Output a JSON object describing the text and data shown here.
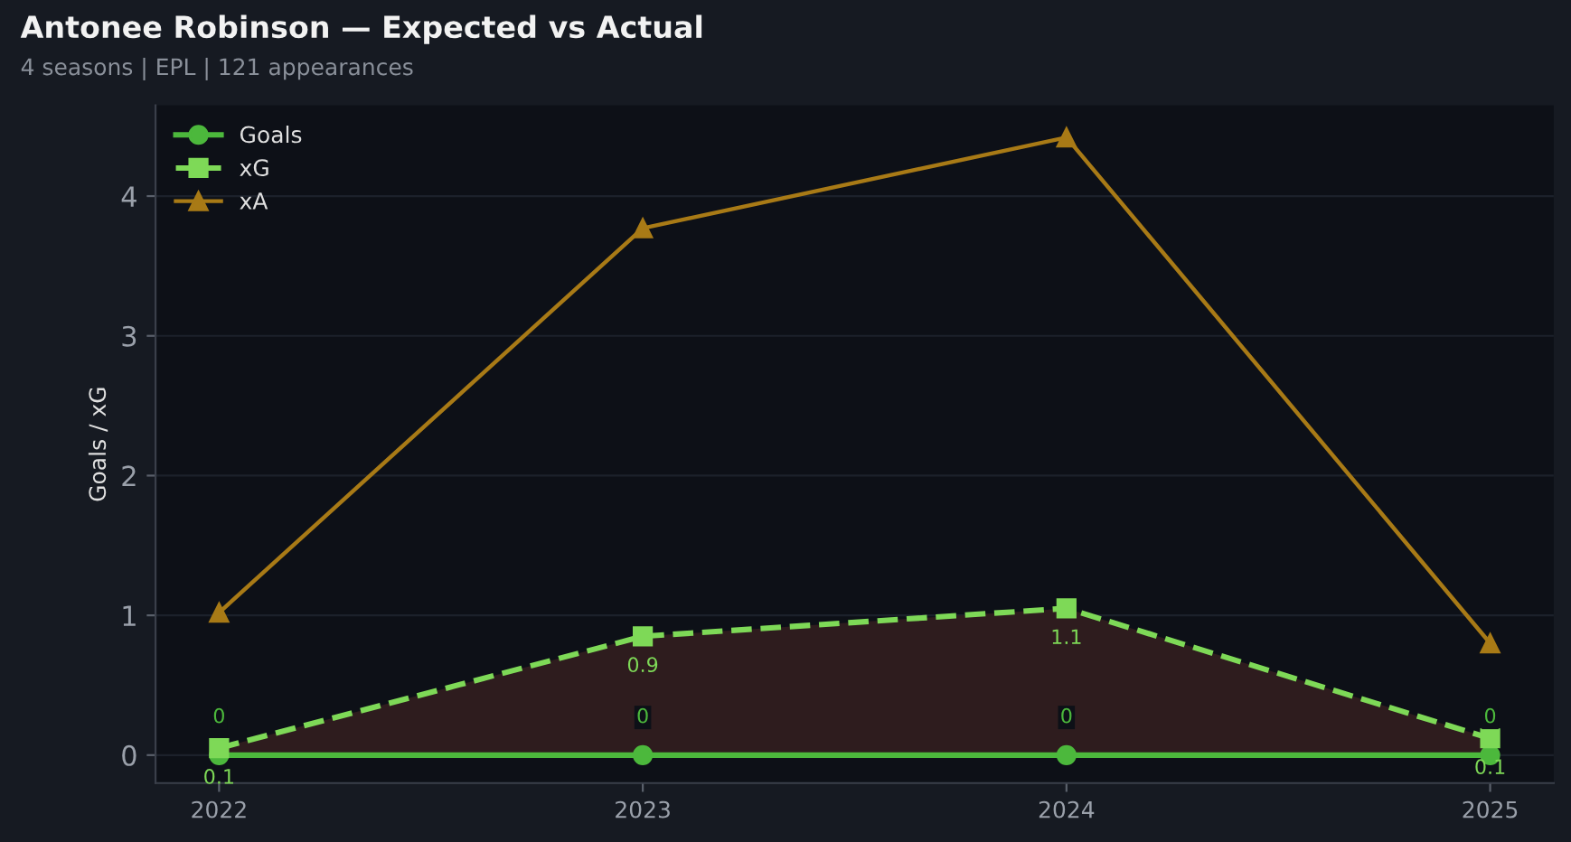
{
  "chart_data": {
    "type": "line",
    "title": "Antonee Robinson — Expected vs Actual",
    "subtitle": "4 seasons | EPL | 121 appearances",
    "ylabel": "Goals / xG",
    "categories": [
      "2022",
      "2023",
      "2024",
      "2025"
    ],
    "series": [
      {
        "name": "Goals",
        "color": "#4cb83c",
        "values": [
          0,
          0,
          0,
          0
        ],
        "marker": "circle",
        "line_style": "solid",
        "value_labels": [
          "0",
          "0",
          "0",
          "0"
        ]
      },
      {
        "name": "xG",
        "color": "#7ed957",
        "values": [
          0.05,
          0.85,
          1.05,
          0.12
        ],
        "marker": "square",
        "line_style": "dashed",
        "lower": [
          0,
          0,
          0,
          0
        ],
        "upper": [
          0.05,
          0.85,
          1.05,
          0.12
        ],
        "value_labels": [
          "0.1",
          "0.9",
          "1.1",
          "0.1"
        ]
      },
      {
        "name": "xA",
        "color": "#a87a16",
        "values": [
          1.02,
          3.77,
          4.42,
          0.8
        ],
        "marker": "triangle",
        "line_style": "solid"
      }
    ],
    "ylim": [
      -0.2,
      4.65
    ],
    "yticks": [
      0,
      1,
      2,
      3,
      4
    ],
    "grid": "y",
    "legend": "top left"
  }
}
